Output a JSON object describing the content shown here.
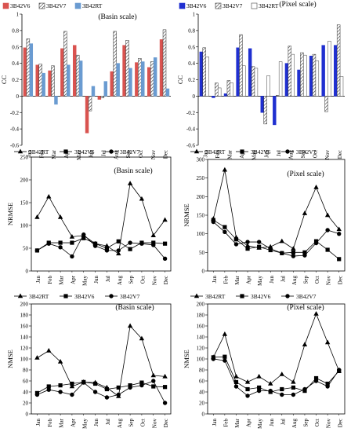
{
  "chart_data": [
    {
      "type": "bar",
      "title": "(Basin scale)",
      "ylabel": "CC",
      "ylim": [
        -0.6,
        1.0
      ],
      "yticks": [
        -0.6,
        -0.4,
        -0.2,
        0,
        0.2,
        0.4,
        0.6,
        0.8,
        1
      ],
      "categories": [
        "Jan",
        "Feb",
        "Mar",
        "Apr",
        "May",
        "Jun",
        "Jul",
        "Aug",
        "Sep",
        "Oct",
        "Nov",
        "Dec"
      ],
      "legend_position": "top-left",
      "series": [
        {
          "name": "3B42V6",
          "values": [
            0.59,
            0.38,
            0.31,
            0.58,
            0.62,
            -0.45,
            -0.04,
            0.3,
            0.62,
            0.41,
            0.35,
            0.69
          ],
          "color": "#d9534f",
          "fill": "solid"
        },
        {
          "name": "3B42V7",
          "values": [
            0.7,
            0.39,
            0.37,
            0.79,
            0.5,
            -0.18,
            -0.02,
            0.79,
            0.68,
            0.46,
            0.42,
            0.81
          ],
          "color": "#555555",
          "fill": "hatch"
        },
        {
          "name": "3B42RT",
          "values": [
            0.64,
            0.28,
            -0.1,
            0.38,
            0.43,
            0.12,
            0.18,
            0.4,
            0.34,
            0.42,
            0.47,
            0.09
          ],
          "color": "#6a9bd1",
          "fill": "solid"
        }
      ]
    },
    {
      "type": "bar",
      "title": "(Pixel scale)",
      "ylabel": "CC",
      "ylim": [
        -0.6,
        1.0
      ],
      "yticks": [
        -0.6,
        -0.4,
        -0.2,
        0,
        0.2,
        0.4,
        0.6,
        0.8,
        1
      ],
      "categories": [
        "Jan",
        "Feb",
        "Mar",
        "Apr",
        "May",
        "Jun",
        "Jul",
        "Aug",
        "Sep",
        "Oct",
        "Nov",
        "Dec"
      ],
      "legend_position": "top-left",
      "series": [
        {
          "name": "3B42V6",
          "values": [
            0.54,
            -0.02,
            0.03,
            0.59,
            0.58,
            -0.2,
            -0.35,
            0.4,
            0.32,
            0.49,
            0.62,
            0.62
          ],
          "color": "#1f2fd0",
          "fill": "solid"
        },
        {
          "name": "3B42V7",
          "values": [
            0.59,
            0.16,
            0.19,
            0.75,
            0.36,
            -0.34,
            0.01,
            0.61,
            0.53,
            0.51,
            -0.19,
            0.87
          ],
          "color": "#444444",
          "fill": "hatch"
        },
        {
          "name": "3B42RT",
          "values": [
            0.48,
            0.1,
            0.16,
            0.37,
            0.34,
            0.25,
            0.42,
            0.51,
            0.5,
            0.43,
            0.67,
            0.24
          ],
          "color": "#666666",
          "fill": "open"
        }
      ]
    },
    {
      "type": "line",
      "title": "(Basin scale)",
      "ylabel": "NRMSE",
      "ylim": [
        0,
        250
      ],
      "yticks": [
        0,
        50,
        100,
        150,
        200,
        250
      ],
      "categories": [
        "Jan",
        "Feb",
        "Mar",
        "Apr",
        "May",
        "Jun",
        "Jul",
        "Aug",
        "Sep",
        "Oct",
        "Nov",
        "Dec"
      ],
      "legend_position": "top",
      "series": [
        {
          "name": "3B42RT",
          "marker": "triangle",
          "values": [
            118,
            163,
            118,
            75,
            78,
            60,
            55,
            38,
            192,
            158,
            78,
            112
          ]
        },
        {
          "name": "3B42V6",
          "marker": "square",
          "values": [
            45,
            62,
            62,
            62,
            72,
            60,
            50,
            65,
            48,
            62,
            62,
            60
          ]
        },
        {
          "name": "3B42V7",
          "marker": "circle",
          "values": [
            45,
            60,
            52,
            32,
            80,
            55,
            45,
            45,
            62,
            60,
            57,
            27
          ]
        }
      ]
    },
    {
      "type": "line",
      "title": "(Pixel scale)",
      "ylabel": "NRMSE",
      "ylim": [
        0,
        300
      ],
      "yticks": [
        0,
        50,
        100,
        150,
        200,
        250,
        300
      ],
      "categories": [
        "Jan",
        "Feb",
        "Mar",
        "Apr",
        "May",
        "Jun",
        "Jul",
        "Aug",
        "Sep",
        "Oct",
        "Nov",
        "Dec"
      ],
      "legend_position": "top",
      "series": [
        {
          "name": "3B42RT",
          "marker": "triangle",
          "values": [
            140,
            272,
            90,
            68,
            62,
            65,
            80,
            60,
            155,
            225,
            150,
            112
          ]
        },
        {
          "name": "3B42V6",
          "marker": "square",
          "values": [
            137,
            118,
            85,
            60,
            65,
            56,
            48,
            50,
            50,
            80,
            57,
            32
          ]
        },
        {
          "name": "3B42V7",
          "marker": "circle",
          "values": [
            132,
            105,
            72,
            78,
            78,
            60,
            48,
            40,
            42,
            75,
            110,
            100
          ]
        }
      ]
    },
    {
      "type": "line",
      "title": "(Basin scale)",
      "ylabel": "NMSE",
      "ylim": [
        0,
        200
      ],
      "yticks": [
        0,
        20,
        40,
        60,
        80,
        100,
        120,
        140,
        160,
        180,
        200
      ],
      "categories": [
        "Jan",
        "Feb",
        "Mar",
        "Apr",
        "May",
        "Jun",
        "Jul",
        "Aug",
        "Sep",
        "Oct",
        "Nov",
        "Dec"
      ],
      "legend_position": "top",
      "series": [
        {
          "name": "3B42RT",
          "marker": "triangle",
          "values": [
            102,
            115,
            95,
            50,
            58,
            57,
            48,
            32,
            160,
            137,
            70,
            68
          ]
        },
        {
          "name": "3B42V6",
          "marker": "square",
          "values": [
            38,
            50,
            52,
            55,
            58,
            55,
            45,
            48,
            52,
            57,
            50,
            49
          ]
        },
        {
          "name": "3B42V7",
          "marker": "circle",
          "values": [
            35,
            44,
            40,
            35,
            57,
            40,
            30,
            35,
            48,
            52,
            60,
            20
          ]
        }
      ]
    },
    {
      "type": "line",
      "title": "(Pixel scale)",
      "ylabel": "NMSE",
      "ylim": [
        0,
        200
      ],
      "yticks": [
        0,
        20,
        40,
        60,
        80,
        100,
        120,
        140,
        160,
        180,
        200
      ],
      "categories": [
        "Jan",
        "Feb",
        "Mar",
        "Apr",
        "May",
        "Jun",
        "Jul",
        "Aug",
        "Sep",
        "Oct",
        "Nov",
        "Dec"
      ],
      "legend_position": "top",
      "series": [
        {
          "name": "3B42RT",
          "marker": "triangle",
          "values": [
            103,
            145,
            68,
            58,
            68,
            55,
            72,
            58,
            126,
            182,
            130,
            78
          ]
        },
        {
          "name": "3B42V6",
          "marker": "square",
          "values": [
            103,
            104,
            58,
            45,
            48,
            40,
            45,
            48,
            42,
            65,
            55,
            78
          ]
        },
        {
          "name": "3B42V7",
          "marker": "circle",
          "values": [
            100,
            97,
            50,
            33,
            42,
            42,
            35,
            35,
            45,
            60,
            50,
            80
          ]
        }
      ]
    }
  ]
}
